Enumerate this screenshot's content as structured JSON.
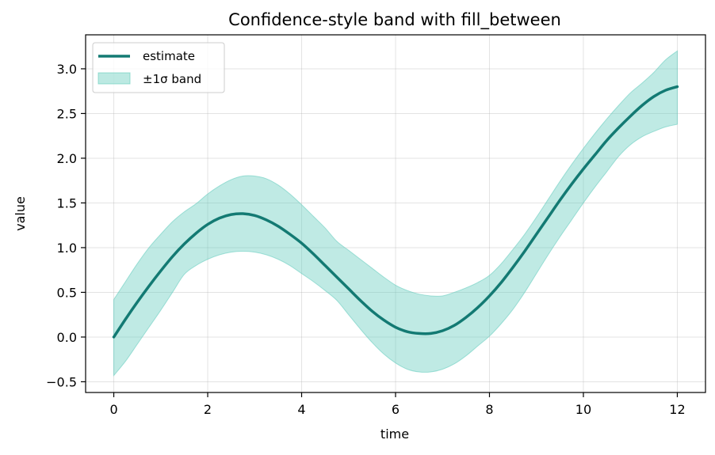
{
  "chart_data": {
    "type": "line",
    "title": "Confidence-style band with fill_between",
    "xlabel": "time",
    "ylabel": "value",
    "xlim": [
      -0.6,
      12.6
    ],
    "ylim": [
      -0.62,
      3.38
    ],
    "x_ticks": [
      0,
      2,
      4,
      6,
      8,
      10,
      12
    ],
    "y_ticks": [
      -0.5,
      0.0,
      0.5,
      1.0,
      1.5,
      2.0,
      2.5,
      3.0
    ],
    "x_tick_labels": [
      "0",
      "2",
      "4",
      "6",
      "8",
      "10",
      "12"
    ],
    "y_tick_labels": [
      "−0.5",
      "0.0",
      "0.5",
      "1.0",
      "1.5",
      "2.0",
      "2.5",
      "3.0"
    ],
    "grid": true,
    "legend_position": "upper left",
    "series": [
      {
        "name": "estimate",
        "kind": "line",
        "color": "#137a73",
        "x": [
          0,
          0.25,
          0.5,
          0.75,
          1,
          1.25,
          1.5,
          1.75,
          2,
          2.25,
          2.5,
          2.75,
          3,
          3.25,
          3.5,
          3.75,
          4,
          4.25,
          4.5,
          4.75,
          5,
          5.25,
          5.5,
          5.75,
          6,
          6.25,
          6.5,
          6.75,
          7,
          7.25,
          7.5,
          7.75,
          8,
          8.25,
          8.5,
          8.75,
          9,
          9.25,
          9.5,
          9.75,
          10,
          10.25,
          10.5,
          10.75,
          11,
          11.25,
          11.5,
          11.75,
          12
        ],
        "y": [
          0.0,
          0.2,
          0.39,
          0.57,
          0.74,
          0.9,
          1.04,
          1.16,
          1.26,
          1.33,
          1.37,
          1.38,
          1.36,
          1.31,
          1.24,
          1.15,
          1.05,
          0.93,
          0.8,
          0.67,
          0.54,
          0.41,
          0.29,
          0.19,
          0.11,
          0.06,
          0.04,
          0.04,
          0.07,
          0.13,
          0.22,
          0.33,
          0.46,
          0.61,
          0.78,
          0.96,
          1.15,
          1.34,
          1.53,
          1.71,
          1.88,
          2.04,
          2.2,
          2.34,
          2.47,
          2.59,
          2.69,
          2.76,
          2.8
        ]
      },
      {
        "name": "±1σ band",
        "kind": "band",
        "color": "#5fcbbb",
        "x": [
          0,
          0.25,
          0.5,
          0.75,
          1,
          1.25,
          1.5,
          1.75,
          2,
          2.25,
          2.5,
          2.75,
          3,
          3.25,
          3.5,
          3.75,
          4,
          4.25,
          4.5,
          4.75,
          5,
          5.25,
          5.5,
          5.75,
          6,
          6.25,
          6.5,
          6.75,
          7,
          7.25,
          7.5,
          7.75,
          8,
          8.25,
          8.5,
          8.75,
          9,
          9.25,
          9.5,
          9.75,
          10,
          10.25,
          10.5,
          10.75,
          11,
          11.25,
          11.5,
          11.75,
          12
        ],
        "lower": [
          -0.43,
          -0.27,
          -0.08,
          0.11,
          0.3,
          0.5,
          0.7,
          0.8,
          0.87,
          0.92,
          0.95,
          0.96,
          0.95,
          0.92,
          0.87,
          0.8,
          0.71,
          0.62,
          0.52,
          0.41,
          0.25,
          0.09,
          -0.06,
          -0.19,
          -0.29,
          -0.36,
          -0.39,
          -0.39,
          -0.36,
          -0.3,
          -0.21,
          -0.1,
          0.01,
          0.15,
          0.31,
          0.5,
          0.71,
          0.92,
          1.12,
          1.31,
          1.5,
          1.68,
          1.85,
          2.02,
          2.15,
          2.24,
          2.3,
          2.35,
          2.38
        ],
        "upper": [
          0.42,
          0.62,
          0.82,
          1.0,
          1.15,
          1.29,
          1.4,
          1.49,
          1.6,
          1.69,
          1.76,
          1.8,
          1.8,
          1.77,
          1.7,
          1.6,
          1.48,
          1.35,
          1.22,
          1.07,
          0.97,
          0.87,
          0.77,
          0.67,
          0.58,
          0.52,
          0.48,
          0.46,
          0.46,
          0.5,
          0.55,
          0.61,
          0.69,
          0.82,
          0.98,
          1.15,
          1.34,
          1.54,
          1.74,
          1.93,
          2.11,
          2.28,
          2.44,
          2.59,
          2.73,
          2.84,
          2.96,
          3.1,
          3.2
        ]
      }
    ]
  }
}
